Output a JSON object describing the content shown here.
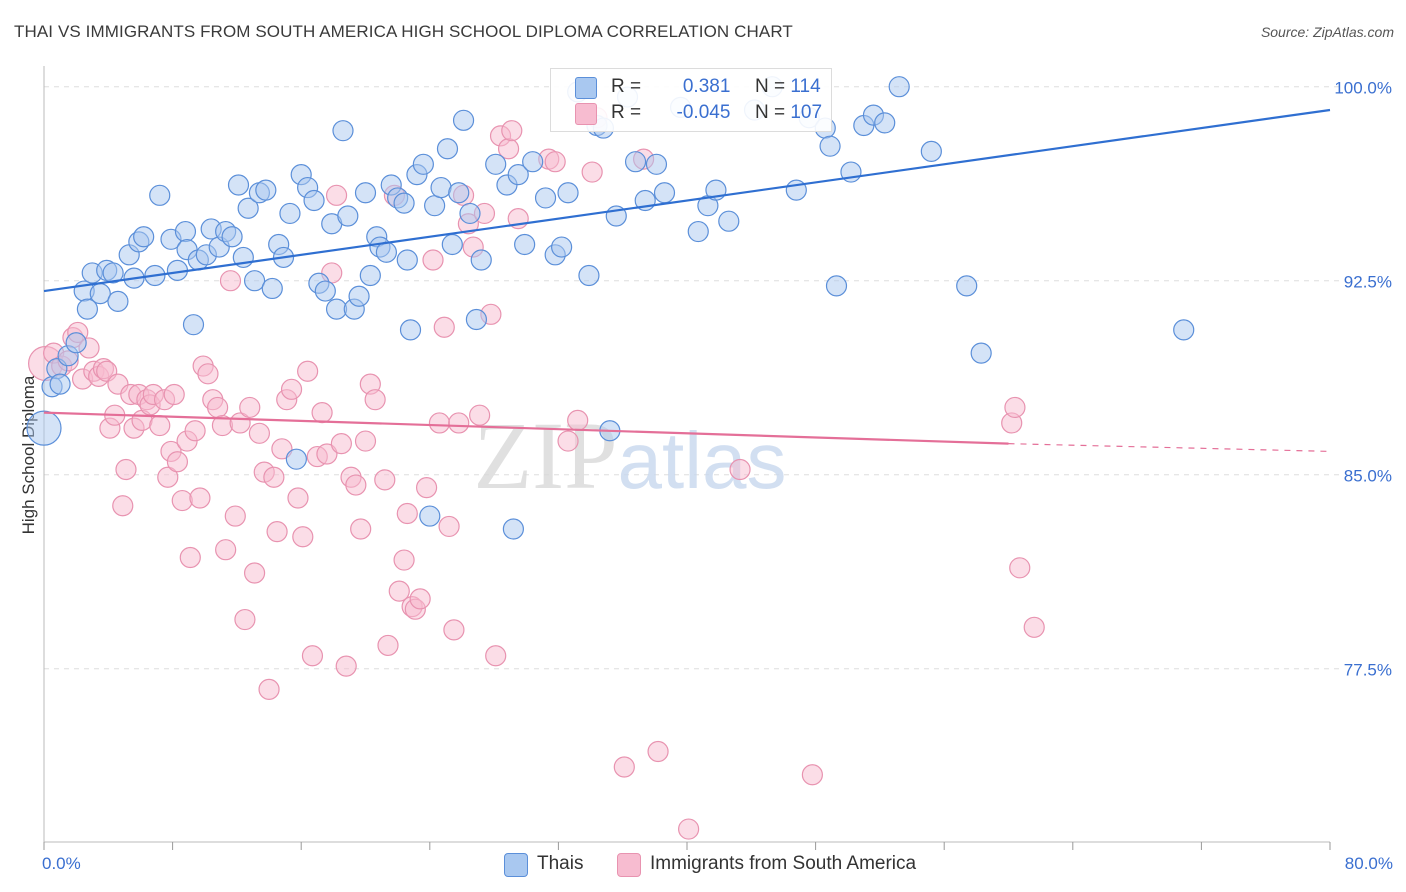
{
  "header": {
    "title": "THAI VS IMMIGRANTS FROM SOUTH AMERICA HIGH SCHOOL DIPLOMA CORRELATION CHART",
    "source": "Source: ZipAtlas.com"
  },
  "watermark": "ZIPatlas",
  "legend": {
    "rows": [
      {
        "r_label": "R =",
        "r_value": "0.381",
        "n_label": "N =",
        "n_value": "114"
      },
      {
        "r_label": "R =",
        "r_value": "-0.045",
        "n_label": "N =",
        "n_value": "107"
      }
    ]
  },
  "bottom_legend": {
    "items": [
      {
        "label": "Thais"
      },
      {
        "label": "Immigrants from South America"
      }
    ]
  },
  "chart_data": {
    "type": "scatter",
    "title": "THAI VS IMMIGRANTS FROM SOUTH AMERICA HIGH SCHOOL DIPLOMA CORRELATION CHART",
    "xlabel": "",
    "ylabel": "High School Diploma",
    "xlim": [
      0,
      80
    ],
    "ylim": [
      70.8,
      100.8
    ],
    "x_tick_labels": [
      "0.0%",
      "80.0%"
    ],
    "y_ticks": [
      77.5,
      85.0,
      92.5,
      100.0
    ],
    "y_tick_labels": [
      "77.5%",
      "85.0%",
      "92.5%",
      "100.0%"
    ],
    "grid": true,
    "colors": {
      "thais_fill": "#a9c8f0",
      "thais_stroke": "#5b8fd9",
      "thais_line": "#2f6fd1",
      "sa_fill": "#f7bcd0",
      "sa_stroke": "#e893b0",
      "sa_line": "#e46f98",
      "axis_label": "#3a6fd0",
      "grid": "#dddddd"
    },
    "series": [
      {
        "name": "Thais",
        "R": 0.381,
        "N": 114,
        "trend": {
          "x0": 0,
          "y0": 92.1,
          "x1": 80,
          "y1": 99.1
        },
        "points": [
          [
            0.0,
            86.8
          ],
          [
            0.5,
            88.4
          ],
          [
            0.8,
            89.1
          ],
          [
            1.0,
            88.5
          ],
          [
            1.5,
            89.6
          ],
          [
            2.0,
            90.1
          ],
          [
            2.5,
            92.1
          ],
          [
            2.7,
            91.4
          ],
          [
            3.0,
            92.8
          ],
          [
            3.5,
            92.0
          ],
          [
            3.9,
            92.9
          ],
          [
            4.3,
            92.8
          ],
          [
            4.6,
            91.7
          ],
          [
            5.3,
            93.5
          ],
          [
            5.6,
            92.6
          ],
          [
            5.9,
            94.0
          ],
          [
            6.2,
            94.2
          ],
          [
            6.9,
            92.7
          ],
          [
            7.2,
            95.8
          ],
          [
            7.9,
            94.1
          ],
          [
            8.3,
            92.9
          ],
          [
            8.8,
            94.4
          ],
          [
            8.9,
            93.7
          ],
          [
            9.3,
            90.8
          ],
          [
            9.6,
            93.3
          ],
          [
            10.1,
            93.5
          ],
          [
            10.4,
            94.5
          ],
          [
            10.9,
            93.8
          ],
          [
            11.3,
            94.4
          ],
          [
            11.7,
            94.2
          ],
          [
            12.1,
            96.2
          ],
          [
            12.4,
            93.4
          ],
          [
            12.7,
            95.3
          ],
          [
            13.1,
            92.5
          ],
          [
            13.4,
            95.9
          ],
          [
            13.8,
            96.0
          ],
          [
            14.2,
            92.2
          ],
          [
            14.6,
            93.9
          ],
          [
            14.9,
            93.4
          ],
          [
            15.3,
            95.1
          ],
          [
            15.7,
            85.6
          ],
          [
            16.0,
            96.6
          ],
          [
            16.4,
            96.1
          ],
          [
            16.8,
            95.6
          ],
          [
            17.1,
            92.4
          ],
          [
            17.5,
            92.1
          ],
          [
            17.9,
            94.7
          ],
          [
            18.2,
            91.4
          ],
          [
            18.6,
            98.3
          ],
          [
            18.9,
            95.0
          ],
          [
            19.3,
            91.4
          ],
          [
            19.6,
            91.9
          ],
          [
            20.0,
            95.9
          ],
          [
            20.3,
            92.7
          ],
          [
            20.7,
            94.2
          ],
          [
            20.9,
            93.8
          ],
          [
            21.3,
            93.6
          ],
          [
            21.6,
            96.2
          ],
          [
            22.0,
            95.7
          ],
          [
            22.4,
            95.5
          ],
          [
            22.6,
            93.3
          ],
          [
            22.8,
            90.6
          ],
          [
            23.2,
            96.6
          ],
          [
            23.6,
            97.0
          ],
          [
            24.0,
            83.4
          ],
          [
            24.3,
            95.4
          ],
          [
            24.7,
            96.1
          ],
          [
            25.1,
            97.6
          ],
          [
            25.4,
            93.9
          ],
          [
            25.8,
            95.9
          ],
          [
            26.1,
            98.7
          ],
          [
            26.5,
            95.1
          ],
          [
            26.9,
            91.0
          ],
          [
            27.2,
            93.3
          ],
          [
            28.1,
            97.0
          ],
          [
            28.8,
            96.2
          ],
          [
            29.2,
            82.9
          ],
          [
            29.5,
            96.6
          ],
          [
            29.9,
            93.9
          ],
          [
            30.4,
            97.1
          ],
          [
            31.2,
            95.7
          ],
          [
            31.8,
            93.5
          ],
          [
            32.2,
            93.8
          ],
          [
            32.6,
            95.9
          ],
          [
            33.2,
            99.8
          ],
          [
            33.9,
            92.7
          ],
          [
            34.4,
            98.5
          ],
          [
            34.8,
            98.4
          ],
          [
            35.2,
            86.7
          ],
          [
            35.6,
            95.0
          ],
          [
            36.3,
            99.6
          ],
          [
            36.8,
            97.1
          ],
          [
            37.4,
            95.6
          ],
          [
            38.1,
            97.0
          ],
          [
            38.6,
            95.9
          ],
          [
            39.6,
            99.2
          ],
          [
            40.7,
            94.4
          ],
          [
            41.3,
            95.4
          ],
          [
            41.8,
            96.0
          ],
          [
            42.6,
            94.8
          ],
          [
            44.2,
            99.1
          ],
          [
            45.3,
            100.0
          ],
          [
            46.8,
            96.0
          ],
          [
            47.6,
            98.8
          ],
          [
            48.6,
            98.4
          ],
          [
            48.9,
            97.7
          ],
          [
            49.3,
            92.3
          ],
          [
            50.2,
            96.7
          ],
          [
            51.0,
            98.5
          ],
          [
            51.6,
            98.9
          ],
          [
            52.3,
            98.6
          ],
          [
            53.2,
            100.0
          ],
          [
            55.2,
            97.5
          ],
          [
            57.4,
            92.3
          ],
          [
            58.3,
            89.7
          ],
          [
            70.9,
            90.6
          ]
        ]
      },
      {
        "name": "Immigrants from South America",
        "R": -0.045,
        "N": 107,
        "trend": {
          "x0": 0,
          "y0": 87.4,
          "x1": 60,
          "y1": 86.2,
          "dashed_to": {
            "x": 80,
            "y": 85.9
          }
        },
        "points": [
          [
            0.1,
            89.3
          ],
          [
            0.6,
            89.7
          ],
          [
            1.1,
            89.2
          ],
          [
            1.5,
            89.4
          ],
          [
            1.8,
            90.3
          ],
          [
            2.1,
            90.5
          ],
          [
            2.4,
            88.7
          ],
          [
            2.8,
            89.9
          ],
          [
            3.1,
            89.0
          ],
          [
            3.4,
            88.8
          ],
          [
            3.7,
            89.1
          ],
          [
            3.9,
            89.0
          ],
          [
            4.1,
            86.8
          ],
          [
            4.4,
            87.3
          ],
          [
            4.6,
            88.5
          ],
          [
            4.9,
            83.8
          ],
          [
            5.1,
            85.2
          ],
          [
            5.4,
            88.1
          ],
          [
            5.6,
            86.8
          ],
          [
            5.9,
            88.1
          ],
          [
            6.1,
            87.1
          ],
          [
            6.4,
            87.9
          ],
          [
            6.6,
            87.7
          ],
          [
            6.8,
            88.1
          ],
          [
            7.2,
            86.9
          ],
          [
            7.5,
            87.9
          ],
          [
            7.7,
            84.9
          ],
          [
            7.9,
            85.9
          ],
          [
            8.1,
            88.1
          ],
          [
            8.3,
            85.5
          ],
          [
            8.6,
            84.0
          ],
          [
            8.9,
            86.3
          ],
          [
            9.1,
            81.8
          ],
          [
            9.4,
            86.7
          ],
          [
            9.7,
            84.1
          ],
          [
            9.9,
            89.2
          ],
          [
            10.2,
            88.9
          ],
          [
            10.5,
            87.9
          ],
          [
            10.8,
            87.6
          ],
          [
            11.1,
            86.9
          ],
          [
            11.3,
            82.1
          ],
          [
            11.6,
            92.5
          ],
          [
            11.9,
            83.4
          ],
          [
            12.2,
            87.0
          ],
          [
            12.5,
            79.4
          ],
          [
            12.8,
            87.6
          ],
          [
            13.1,
            81.2
          ],
          [
            13.4,
            86.6
          ],
          [
            13.7,
            85.1
          ],
          [
            14.0,
            76.7
          ],
          [
            14.3,
            84.9
          ],
          [
            14.5,
            82.8
          ],
          [
            14.8,
            86.0
          ],
          [
            15.1,
            87.9
          ],
          [
            15.4,
            88.3
          ],
          [
            15.8,
            84.1
          ],
          [
            16.1,
            82.6
          ],
          [
            16.4,
            89.0
          ],
          [
            16.7,
            78.0
          ],
          [
            17.0,
            85.7
          ],
          [
            17.3,
            87.4
          ],
          [
            17.6,
            85.8
          ],
          [
            17.9,
            92.8
          ],
          [
            18.2,
            95.8
          ],
          [
            18.5,
            86.2
          ],
          [
            18.8,
            77.6
          ],
          [
            19.1,
            84.9
          ],
          [
            19.4,
            84.6
          ],
          [
            19.7,
            82.9
          ],
          [
            20.0,
            86.3
          ],
          [
            20.3,
            88.5
          ],
          [
            20.6,
            87.9
          ],
          [
            21.2,
            84.8
          ],
          [
            21.4,
            78.4
          ],
          [
            21.8,
            95.8
          ],
          [
            22.1,
            80.5
          ],
          [
            22.4,
            81.7
          ],
          [
            22.6,
            83.5
          ],
          [
            22.9,
            79.9
          ],
          [
            23.1,
            79.8
          ],
          [
            23.4,
            80.2
          ],
          [
            23.8,
            84.5
          ],
          [
            24.2,
            93.3
          ],
          [
            24.6,
            87.0
          ],
          [
            24.9,
            90.7
          ],
          [
            25.2,
            83.0
          ],
          [
            25.5,
            79.0
          ],
          [
            25.8,
            87.0
          ],
          [
            26.1,
            95.8
          ],
          [
            26.4,
            94.7
          ],
          [
            26.7,
            93.8
          ],
          [
            27.1,
            87.3
          ],
          [
            27.4,
            95.1
          ],
          [
            27.8,
            91.2
          ],
          [
            28.1,
            78.0
          ],
          [
            28.4,
            98.1
          ],
          [
            28.9,
            97.6
          ],
          [
            29.1,
            98.3
          ],
          [
            29.5,
            94.9
          ],
          [
            31.4,
            97.2
          ],
          [
            31.8,
            97.1
          ],
          [
            32.6,
            86.3
          ],
          [
            33.2,
            87.1
          ],
          [
            34.1,
            96.7
          ],
          [
            34.4,
            98.8
          ],
          [
            36.1,
            73.7
          ],
          [
            37.3,
            97.2
          ],
          [
            38.2,
            74.3
          ],
          [
            40.1,
            71.3
          ],
          [
            43.3,
            85.2
          ],
          [
            47.8,
            73.4
          ],
          [
            60.2,
            87.0
          ],
          [
            60.4,
            87.6
          ],
          [
            60.7,
            81.4
          ],
          [
            61.6,
            79.1
          ]
        ]
      }
    ]
  }
}
